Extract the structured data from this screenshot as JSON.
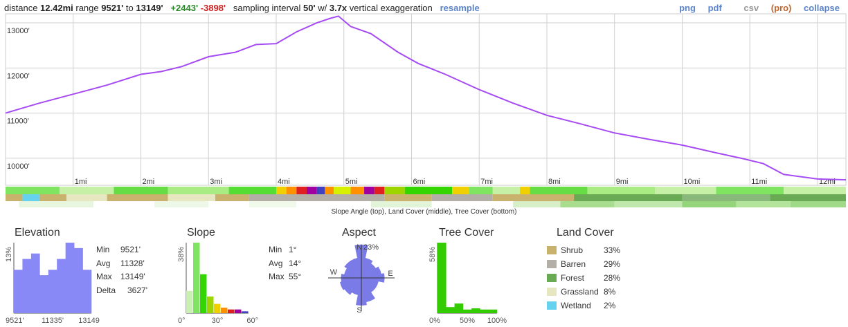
{
  "summary": {
    "distance_label": "distance",
    "distance": "12.42mi",
    "range_label": "range",
    "range_min": "9521'",
    "range_to": "to",
    "range_max": "13149'",
    "gain": "+2443'",
    "loss": "-3898'",
    "interval_label": "sampling interval",
    "interval": "50'",
    "w_label": "w/",
    "exaggeration": "3.7x",
    "exaggeration_label": "vertical exaggeration",
    "resample": "resample"
  },
  "links": {
    "png": "png",
    "pdf": "pdf",
    "csv": "csv",
    "pro": "(pro)",
    "collapse": "collapse"
  },
  "caption": "Slope Angle (top), Land Cover (middle), Tree Cover (bottom)",
  "chart_data": [
    {
      "type": "line",
      "name": "elevation-profile",
      "x_unit": "mi",
      "xlim": [
        0,
        12.42
      ],
      "ylim": [
        9400,
        13200
      ],
      "y_ticks": [
        10000,
        11000,
        12000,
        13000
      ],
      "y_tick_labels": [
        "10000'",
        "11000'",
        "12000'",
        "13000'"
      ],
      "x_ticks": [
        1,
        2,
        3,
        4,
        5,
        6,
        7,
        8,
        9,
        10,
        11,
        12
      ],
      "x_tick_labels": [
        "1mi",
        "2mi",
        "3mi",
        "4mi",
        "5mi",
        "6mi",
        "7mi",
        "8mi",
        "9mi",
        "10mi",
        "11mi",
        "12mi"
      ],
      "grid": true,
      "color": "#a64bf4",
      "x": [
        0,
        0.5,
        1,
        1.5,
        2,
        2.3,
        2.6,
        3,
        3.4,
        3.7,
        4,
        4.3,
        4.6,
        4.8,
        4.92,
        5.1,
        5.4,
        5.8,
        6.1,
        6.5,
        7,
        7.5,
        8,
        8.5,
        9,
        9.5,
        10,
        10.5,
        10.9,
        11.2,
        11.5,
        12,
        12.42
      ],
      "y": [
        11000,
        11220,
        11420,
        11620,
        11860,
        11920,
        12030,
        12250,
        12350,
        12520,
        12540,
        12800,
        13000,
        13100,
        13149,
        12920,
        12760,
        12350,
        12100,
        11860,
        11520,
        11220,
        10950,
        10760,
        10560,
        10420,
        10290,
        10120,
        9990,
        9880,
        9640,
        9540,
        9521
      ]
    },
    {
      "type": "bar",
      "name": "elevation-histogram",
      "values": [
        8,
        10,
        11,
        7,
        8,
        10,
        13,
        12,
        8
      ],
      "ymax": 13,
      "y_label": "13%",
      "x_tick_labels": [
        "9521'",
        "11335'",
        "13149'"
      ],
      "color": "#8888f7"
    },
    {
      "type": "bar",
      "name": "slope-histogram",
      "values": [
        12,
        38,
        21,
        9,
        5,
        3,
        2,
        2,
        1
      ],
      "colors": [
        "#c8f0b0",
        "#7fe560",
        "#33d600",
        "#9ed400",
        "#f0d000",
        "#ff9000",
        "#e02020",
        "#a000a0",
        "#4040c0"
      ],
      "ymax": 38,
      "y_label": "38%",
      "x_tick_labels": [
        "0°",
        "30°",
        "60°"
      ]
    },
    {
      "type": "bar",
      "name": "aspect-rose",
      "directions": [
        "N",
        "NNE",
        "NE",
        "ENE",
        "E",
        "ESE",
        "SE",
        "SSE",
        "S",
        "SSW",
        "SW",
        "WSW",
        "W",
        "WNW",
        "NW",
        "NNW"
      ],
      "values": [
        23,
        14,
        12,
        14,
        16,
        12,
        12,
        17,
        19,
        12,
        14,
        15,
        14,
        12,
        14,
        14
      ],
      "ymax": 23,
      "y_label": "23%",
      "labels": {
        "n": "N",
        "e": "E",
        "s": "S",
        "w": "W"
      },
      "color": "#7b7be8"
    },
    {
      "type": "bar",
      "name": "tree-cover-histogram",
      "values": [
        58,
        5,
        8,
        3,
        4,
        3,
        3
      ],
      "ymax": 58,
      "y_label": "58%",
      "x_tick_labels": [
        "0%",
        "50%",
        "100%"
      ],
      "color": "#33cc00"
    }
  ],
  "panels": {
    "elevation": {
      "title": "Elevation",
      "min_label": "Min",
      "min": "9521'",
      "avg_label": "Avg",
      "avg": "11328'",
      "max_label": "Max",
      "max": "13149'",
      "delta_label": "Delta",
      "delta": "3627'"
    },
    "slope": {
      "title": "Slope",
      "min_label": "Min",
      "min": "1°",
      "avg_label": "Avg",
      "avg": "14°",
      "max_label": "Max",
      "max": "55°"
    },
    "aspect": {
      "title": "Aspect"
    },
    "tree": {
      "title": "Tree Cover"
    },
    "land": {
      "title": "Land Cover",
      "items": [
        {
          "name": "Shrub",
          "pct": "33%",
          "color": "#c9b16e"
        },
        {
          "name": "Barren",
          "pct": "29%",
          "color": "#b3aea6"
        },
        {
          "name": "Forest",
          "pct": "28%",
          "color": "#6aaa55"
        },
        {
          "name": "Grassland",
          "pct": "8%",
          "color": "#e6e7c0"
        },
        {
          "name": "Wetland",
          "pct": "2%",
          "color": "#66d2ee"
        }
      ]
    }
  },
  "strips": {
    "slope_segments": [
      {
        "to": 0.8,
        "color": "#7fe560"
      },
      {
        "to": 1.6,
        "color": "#c6f0a6"
      },
      {
        "to": 2.4,
        "color": "#66dd44"
      },
      {
        "to": 3.3,
        "color": "#a9ec84"
      },
      {
        "to": 4.0,
        "color": "#55dd33"
      },
      {
        "to": 4.15,
        "color": "#f0d000"
      },
      {
        "to": 4.3,
        "color": "#ff9000"
      },
      {
        "to": 4.45,
        "color": "#e02020"
      },
      {
        "to": 4.6,
        "color": "#a000a0"
      },
      {
        "to": 4.72,
        "color": "#4040c0"
      },
      {
        "to": 4.85,
        "color": "#ff9000"
      },
      {
        "to": 5.1,
        "color": "#d6f000"
      },
      {
        "to": 5.3,
        "color": "#ff9000"
      },
      {
        "to": 5.45,
        "color": "#a000a0"
      },
      {
        "to": 5.6,
        "color": "#e02020"
      },
      {
        "to": 5.9,
        "color": "#9ed400"
      },
      {
        "to": 6.6,
        "color": "#33d600"
      },
      {
        "to": 6.85,
        "color": "#f0d000"
      },
      {
        "to": 7.2,
        "color": "#7fe560"
      },
      {
        "to": 7.6,
        "color": "#c6f0a6"
      },
      {
        "to": 7.75,
        "color": "#f0d000"
      },
      {
        "to": 8.6,
        "color": "#66dd44"
      },
      {
        "to": 9.6,
        "color": "#a9ec84"
      },
      {
        "to": 10.5,
        "color": "#c6f0a6"
      },
      {
        "to": 11.5,
        "color": "#7fe560"
      },
      {
        "to": 12.42,
        "color": "#c6f0a6"
      }
    ],
    "land_segments": [
      {
        "to": 0.25,
        "color": "#c9b16e"
      },
      {
        "to": 0.5,
        "color": "#66d2ee"
      },
      {
        "to": 0.9,
        "color": "#c9b16e"
      },
      {
        "to": 1.5,
        "color": "#e6e7c0"
      },
      {
        "to": 2.4,
        "color": "#c9b16e"
      },
      {
        "to": 3.1,
        "color": "#e6e7c0"
      },
      {
        "to": 3.6,
        "color": "#c9b16e"
      },
      {
        "to": 4.2,
        "color": "#b3aea6"
      },
      {
        "to": 5.6,
        "color": "#b3aea6"
      },
      {
        "to": 6.3,
        "color": "#c9b16e"
      },
      {
        "to": 7.2,
        "color": "#b3aea6"
      },
      {
        "to": 8.4,
        "color": "#c9b16e"
      },
      {
        "to": 10.0,
        "color": "#6aaa55"
      },
      {
        "to": 11.3,
        "color": "#88b97a"
      },
      {
        "to": 12.42,
        "color": "#6aaa55"
      }
    ],
    "tree_segments": [
      {
        "to": 0.2,
        "color": "#ffffff"
      },
      {
        "to": 1.3,
        "color": "#e8f6e0"
      },
      {
        "to": 2.2,
        "color": "#ffffff"
      },
      {
        "to": 3.0,
        "color": "#eef8e8"
      },
      {
        "to": 3.6,
        "color": "#ffffff"
      },
      {
        "to": 4.3,
        "color": "#f0f9ea"
      },
      {
        "to": 5.4,
        "color": "#ffffff"
      },
      {
        "to": 6.3,
        "color": "#e2f4d8"
      },
      {
        "to": 7.5,
        "color": "#ffffff"
      },
      {
        "to": 8.2,
        "color": "#d6efc8"
      },
      {
        "to": 9.0,
        "color": "#a8dd90"
      },
      {
        "to": 10.0,
        "color": "#c0e8ac"
      },
      {
        "to": 10.8,
        "color": "#94d47a"
      },
      {
        "to": 11.6,
        "color": "#b4e39c"
      },
      {
        "to": 12.42,
        "color": "#a0da88"
      }
    ]
  }
}
